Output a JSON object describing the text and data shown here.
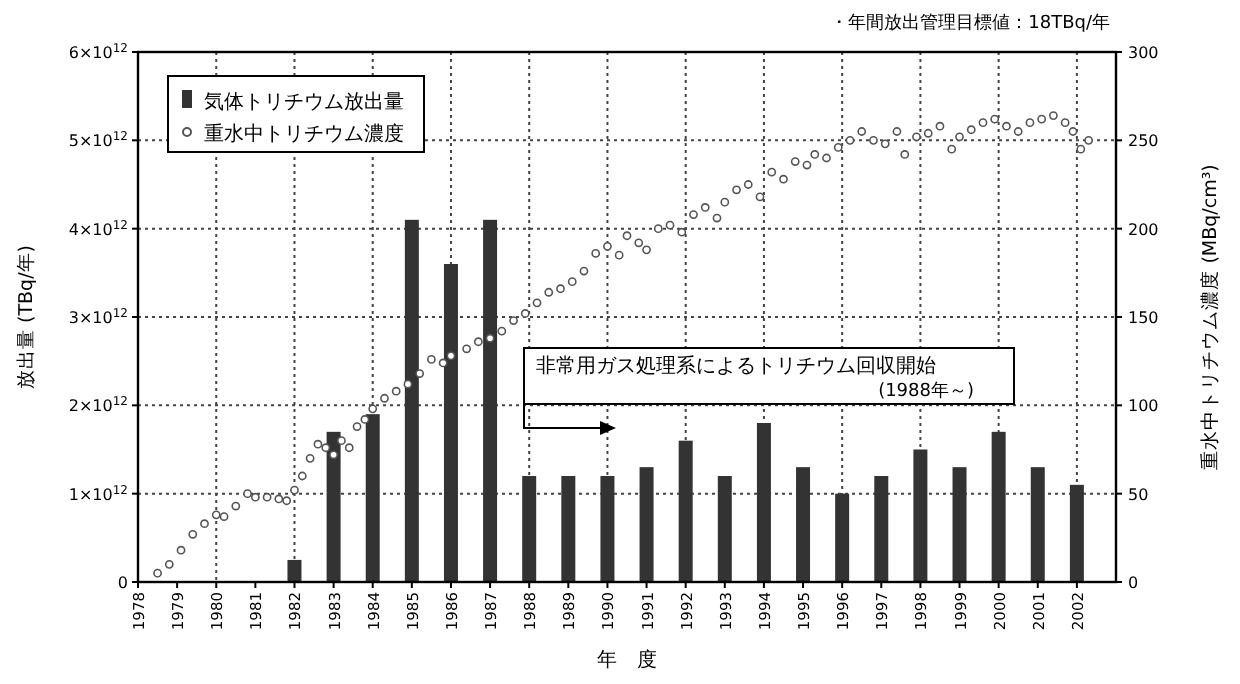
{
  "chart_data": {
    "type": "bar",
    "xlabel": "年　度",
    "ylabel": "放出量 (TBq/年)",
    "y2label": "重水中トリチウム濃度 (MBq/cm³)",
    "xlim": [
      1978,
      2003
    ],
    "xticks": [
      1978,
      1979,
      1980,
      1981,
      1982,
      1983,
      1984,
      1985,
      1986,
      1987,
      1988,
      1989,
      1990,
      1991,
      1992,
      1993,
      1994,
      1995,
      1996,
      1997,
      1998,
      1999,
      2000,
      2001,
      2002
    ],
    "ylim": [
      0,
      6000000000000.0
    ],
    "yticks": [
      {
        "value": 0,
        "label": "0"
      },
      {
        "value": 1000000000000.0,
        "label": "1×10$^{12}$"
      },
      {
        "value": 2000000000000.0,
        "label": "2×10$^{12}$"
      },
      {
        "value": 3000000000000.0,
        "label": "3×10$^{12}$"
      },
      {
        "value": 4000000000000.0,
        "label": "4×10$^{12}$"
      },
      {
        "value": 5000000000000.0,
        "label": "5×10$^{12}$"
      },
      {
        "value": 6000000000000.0,
        "label": "6×10$^{12}$"
      }
    ],
    "y2lim": [
      0,
      300
    ],
    "y2ticks": [
      0,
      50,
      100,
      150,
      200,
      250,
      300
    ],
    "grid": true,
    "legend": "top left",
    "series": [
      {
        "name": "気体トリチウム放出量",
        "color": "#333333",
        "x": [
          1982,
          1983,
          1984,
          1985,
          1986,
          1987,
          1988,
          1989,
          1990,
          1991,
          1992,
          1993,
          1994,
          1995,
          1996,
          1997,
          1998,
          1999,
          2000,
          2001,
          2002
        ],
        "values": [
          250000000000.0,
          1700000000000.0,
          1900000000000.0,
          4100000000000.0,
          3600000000000.0,
          4100000000000.0,
          1200000000000.0,
          1200000000000.0,
          1200000000000.0,
          1300000000000.0,
          1600000000000.0,
          1200000000000.0,
          1800000000000.0,
          1300000000000.0,
          1000000000000.0,
          1200000000000.0,
          1500000000000.0,
          1300000000000.0,
          1700000000000.0,
          1300000000000.0,
          1100000000000.0
        ]
      },
      {
        "name": "重水中トリチウム濃度",
        "type": "scatter",
        "axis": "y2",
        "marker": "circle",
        "color": "#555555",
        "x": [
          1978.5,
          1978.8,
          1979.1,
          1979.4,
          1979.7,
          1980.0,
          1980.2,
          1980.5,
          1980.8,
          1981.0,
          1981.3,
          1981.6,
          1981.8,
          1982.0,
          1982.2,
          1982.4,
          1982.6,
          1982.8,
          1983.0,
          1983.2,
          1983.4,
          1983.6,
          1983.8,
          1984.0,
          1984.3,
          1984.6,
          1984.9,
          1985.2,
          1985.5,
          1985.8,
          1986.0,
          1986.4,
          1986.7,
          1987.0,
          1987.3,
          1987.6,
          1987.9,
          1988.2,
          1988.5,
          1988.8,
          1989.1,
          1989.4,
          1989.7,
          1990.0,
          1990.3,
          1990.5,
          1990.8,
          1991.0,
          1991.3,
          1991.6,
          1991.9,
          1992.2,
          1992.5,
          1992.8,
          1993.0,
          1993.3,
          1993.6,
          1993.9,
          1994.2,
          1994.5,
          1994.8,
          1995.1,
          1995.3,
          1995.6,
          1995.9,
          1996.2,
          1996.5,
          1996.8,
          1997.1,
          1997.4,
          1997.6,
          1997.9,
          1998.2,
          1998.5,
          1998.8,
          1999.0,
          1999.3,
          1999.6,
          1999.9,
          2000.2,
          2000.5,
          2000.8,
          2001.1,
          2001.4,
          2001.7,
          2001.9,
          2002.1,
          2002.3
        ],
        "values": [
          5,
          10,
          18,
          27,
          33,
          38,
          37,
          43,
          50,
          48,
          48,
          47,
          46,
          52,
          60,
          70,
          78,
          76,
          72,
          80,
          76,
          88,
          92,
          98,
          104,
          108,
          112,
          118,
          126,
          124,
          128,
          132,
          136,
          138,
          142,
          148,
          152,
          158,
          164,
          166,
          170,
          176,
          186,
          190,
          185,
          196,
          192,
          188,
          200,
          202,
          198,
          208,
          212,
          206,
          215,
          222,
          225,
          218,
          232,
          228,
          238,
          236,
          242,
          240,
          246,
          250,
          255,
          250,
          248,
          255,
          242,
          252,
          254,
          258,
          245,
          252,
          256,
          260,
          262,
          258,
          255,
          260,
          262,
          264,
          260,
          255,
          245,
          250
        ]
      }
    ],
    "annotations": [
      "非常用ガス処理系によるトリチウム回収開始\n(1988年～)",
      "・年間放出管理目標値：18TBq/年"
    ]
  }
}
